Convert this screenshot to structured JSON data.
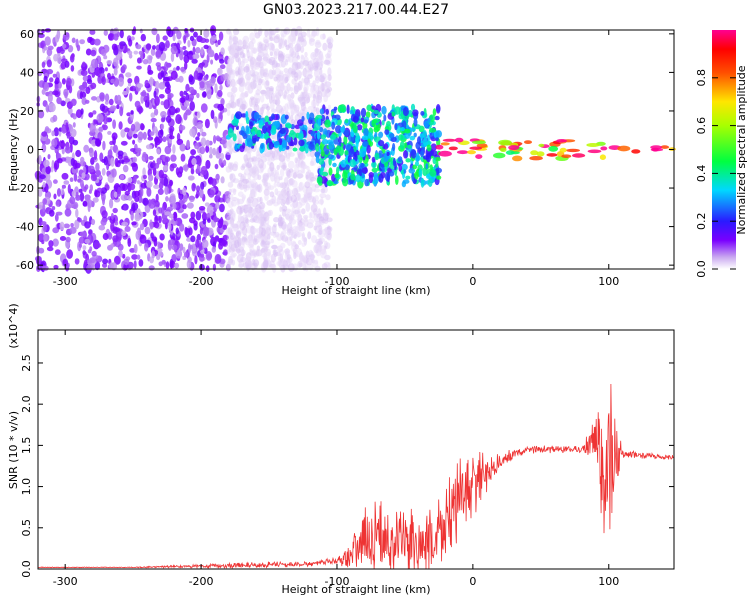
{
  "title": "GN03.2023.217.00.44.E27",
  "colors": {
    "snr_line": "#ee3333",
    "spectrogram_low": "#6a0dad",
    "axis": "#000000"
  },
  "chart_data": [
    {
      "type": "heatmap",
      "xlabel": "Height of straight line (km)",
      "ylabel": "Frequency (Hz)",
      "xlim": [
        -320,
        148
      ],
      "ylim": [
        -62,
        62
      ],
      "x_ticks": [
        -300,
        -200,
        -100,
        0,
        100
      ],
      "y_ticks": [
        -60,
        -40,
        -20,
        0,
        20,
        40,
        60
      ],
      "colorbar": {
        "label": "Normalized spectral amplitude",
        "range": [
          0.0,
          1.0
        ],
        "ticks": [
          "0.0",
          "0.2",
          "0.4",
          "0.6",
          "0.8"
        ],
        "colormap": "rainbow (white → purple → blue → cyan → green → yellow → red → magenta)"
      },
      "features": [
        {
          "x_range": [
            -320,
            -180
          ],
          "freq_range": [
            -62,
            62
          ],
          "amplitude": 0.1
        },
        {
          "x_range": [
            -180,
            -105
          ],
          "freq_range": [
            -62,
            62
          ],
          "amplitude": 0.03
        },
        {
          "x_range": [
            -180,
            -115
          ],
          "freq_range": [
            0,
            18
          ],
          "amplitude": 0.3
        },
        {
          "x_range": [
            -115,
            -25
          ],
          "freq_range": [
            -18,
            22
          ],
          "amplitude": 0.35
        },
        {
          "x_range": [
            -25,
            100
          ],
          "freq_range": [
            -5,
            5
          ],
          "amplitude": 0.9
        },
        {
          "x_range": [
            100,
            148
          ],
          "freq_range": [
            -2,
            2
          ],
          "amplitude": 0.95
        }
      ]
    },
    {
      "type": "line",
      "xlabel": "Height of straight line (km)",
      "ylabel": "SNR (10 * v/v)",
      "y_multiplier": "(x10^4)",
      "xlim": [
        -320,
        148
      ],
      "ylim": [
        0,
        2.9
      ],
      "x_ticks": [
        -300,
        -200,
        -100,
        0,
        100
      ],
      "y_ticks": [
        "0.0",
        "0.5",
        "1.0",
        "1.5",
        "2.0",
        "2.5"
      ],
      "series": [
        {
          "x": [
            -320,
            -250,
            -150,
            -120,
            -100,
            -90,
            -80,
            -70,
            -60,
            -50,
            -40,
            -30,
            -20,
            -10,
            0,
            10,
            20,
            30,
            40,
            60,
            80,
            90,
            95,
            100,
            105,
            110,
            148
          ],
          "mean": [
            0.02,
            0.02,
            0.05,
            0.06,
            0.1,
            0.2,
            0.35,
            0.4,
            0.3,
            0.35,
            0.25,
            0.3,
            0.55,
            0.85,
            1.0,
            1.15,
            1.3,
            1.4,
            1.45,
            1.45,
            1.45,
            1.5,
            1.3,
            1.2,
            1.3,
            1.4,
            1.35
          ],
          "noise": [
            0.005,
            0.005,
            0.04,
            0.03,
            0.05,
            0.2,
            0.4,
            0.5,
            0.4,
            0.45,
            0.4,
            0.5,
            0.55,
            0.5,
            0.45,
            0.25,
            0.12,
            0.06,
            0.05,
            0.05,
            0.05,
            0.35,
            0.9,
            1.3,
            0.6,
            0.05,
            0.03
          ]
        }
      ]
    }
  ]
}
